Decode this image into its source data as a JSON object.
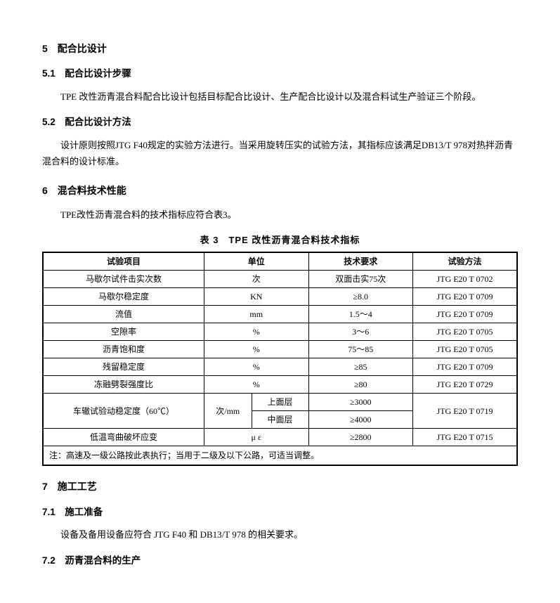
{
  "sec5": {
    "num": "5",
    "title": "配合比设计",
    "s1": {
      "num": "5.1",
      "title": "配合比设计步骤",
      "p": "TPE 改性沥青混合料配合比设计包括目标配合比设计、生产配合比设计以及混合料试生产验证三个阶段。"
    },
    "s2": {
      "num": "5.2",
      "title": "配合比设计方法",
      "p": "设计原则按照JTG F40规定的实验方法进行。当采用旋转压实的试验方法，其指标应该满足DB13/T 978对热拌沥青混合料的设计标准。"
    }
  },
  "sec6": {
    "num": "6",
    "title": "混合料技术性能",
    "p": "TPE改性沥青混合料的技术指标应符合表3。",
    "table_caption": "表 3　TPE 改性沥青混合料技术指标",
    "headers": {
      "c1": "试验项目",
      "c2": "单位",
      "c3": "技术要求",
      "c4": "试验方法"
    },
    "rows": [
      {
        "item": "马歇尔试件击实次数",
        "unit": "次",
        "req": "双面击实75次",
        "method": "JTG E20 T 0702"
      },
      {
        "item": "马歇尔稳定度",
        "unit": "KN",
        "req": "≥8.0",
        "method": "JTG E20 T 0709"
      },
      {
        "item": "流值",
        "unit": "mm",
        "req": "1.5～4",
        "method": "JTG E20 T 0709"
      },
      {
        "item": "空隙率",
        "unit": "%",
        "req": "3～6",
        "method": "JTG E20 T 0705"
      },
      {
        "item": "沥青饱和度",
        "unit": "%",
        "req": "75～85",
        "method": "JTG E20 T 0705"
      },
      {
        "item": "残留稳定度",
        "unit": "%",
        "req": "≥85",
        "method": "JTG E20 T 0709"
      },
      {
        "item": "冻融劈裂强度比",
        "unit": "%",
        "req": "≥80",
        "method": "JTG E20 T 0729"
      }
    ],
    "rut": {
      "item": "车辙试验动稳定度（60℃）",
      "unit": "次/mm",
      "sub1_label": "上面层",
      "sub1_req": "≥3000",
      "sub2_label": "中面层",
      "sub2_req": "≥4000",
      "method": "JTG E20 T 0719"
    },
    "last": {
      "item": "低温弯曲破坏应变",
      "unit": "μ ε",
      "req": "≥2800",
      "method": "JTG E20 T 0715"
    },
    "note": "注：高速及一级公路按此表执行；当用于二级及以下公路，可适当调整。"
  },
  "sec7": {
    "num": "7",
    "title": "施工工艺",
    "s1": {
      "num": "7.1",
      "title": "施工准备",
      "p": "设备及备用设备应符合 JTG F40 和 DB13/T 978 的相关要求。"
    },
    "s2": {
      "num": "7.2",
      "title": "沥青混合料的生产"
    }
  }
}
